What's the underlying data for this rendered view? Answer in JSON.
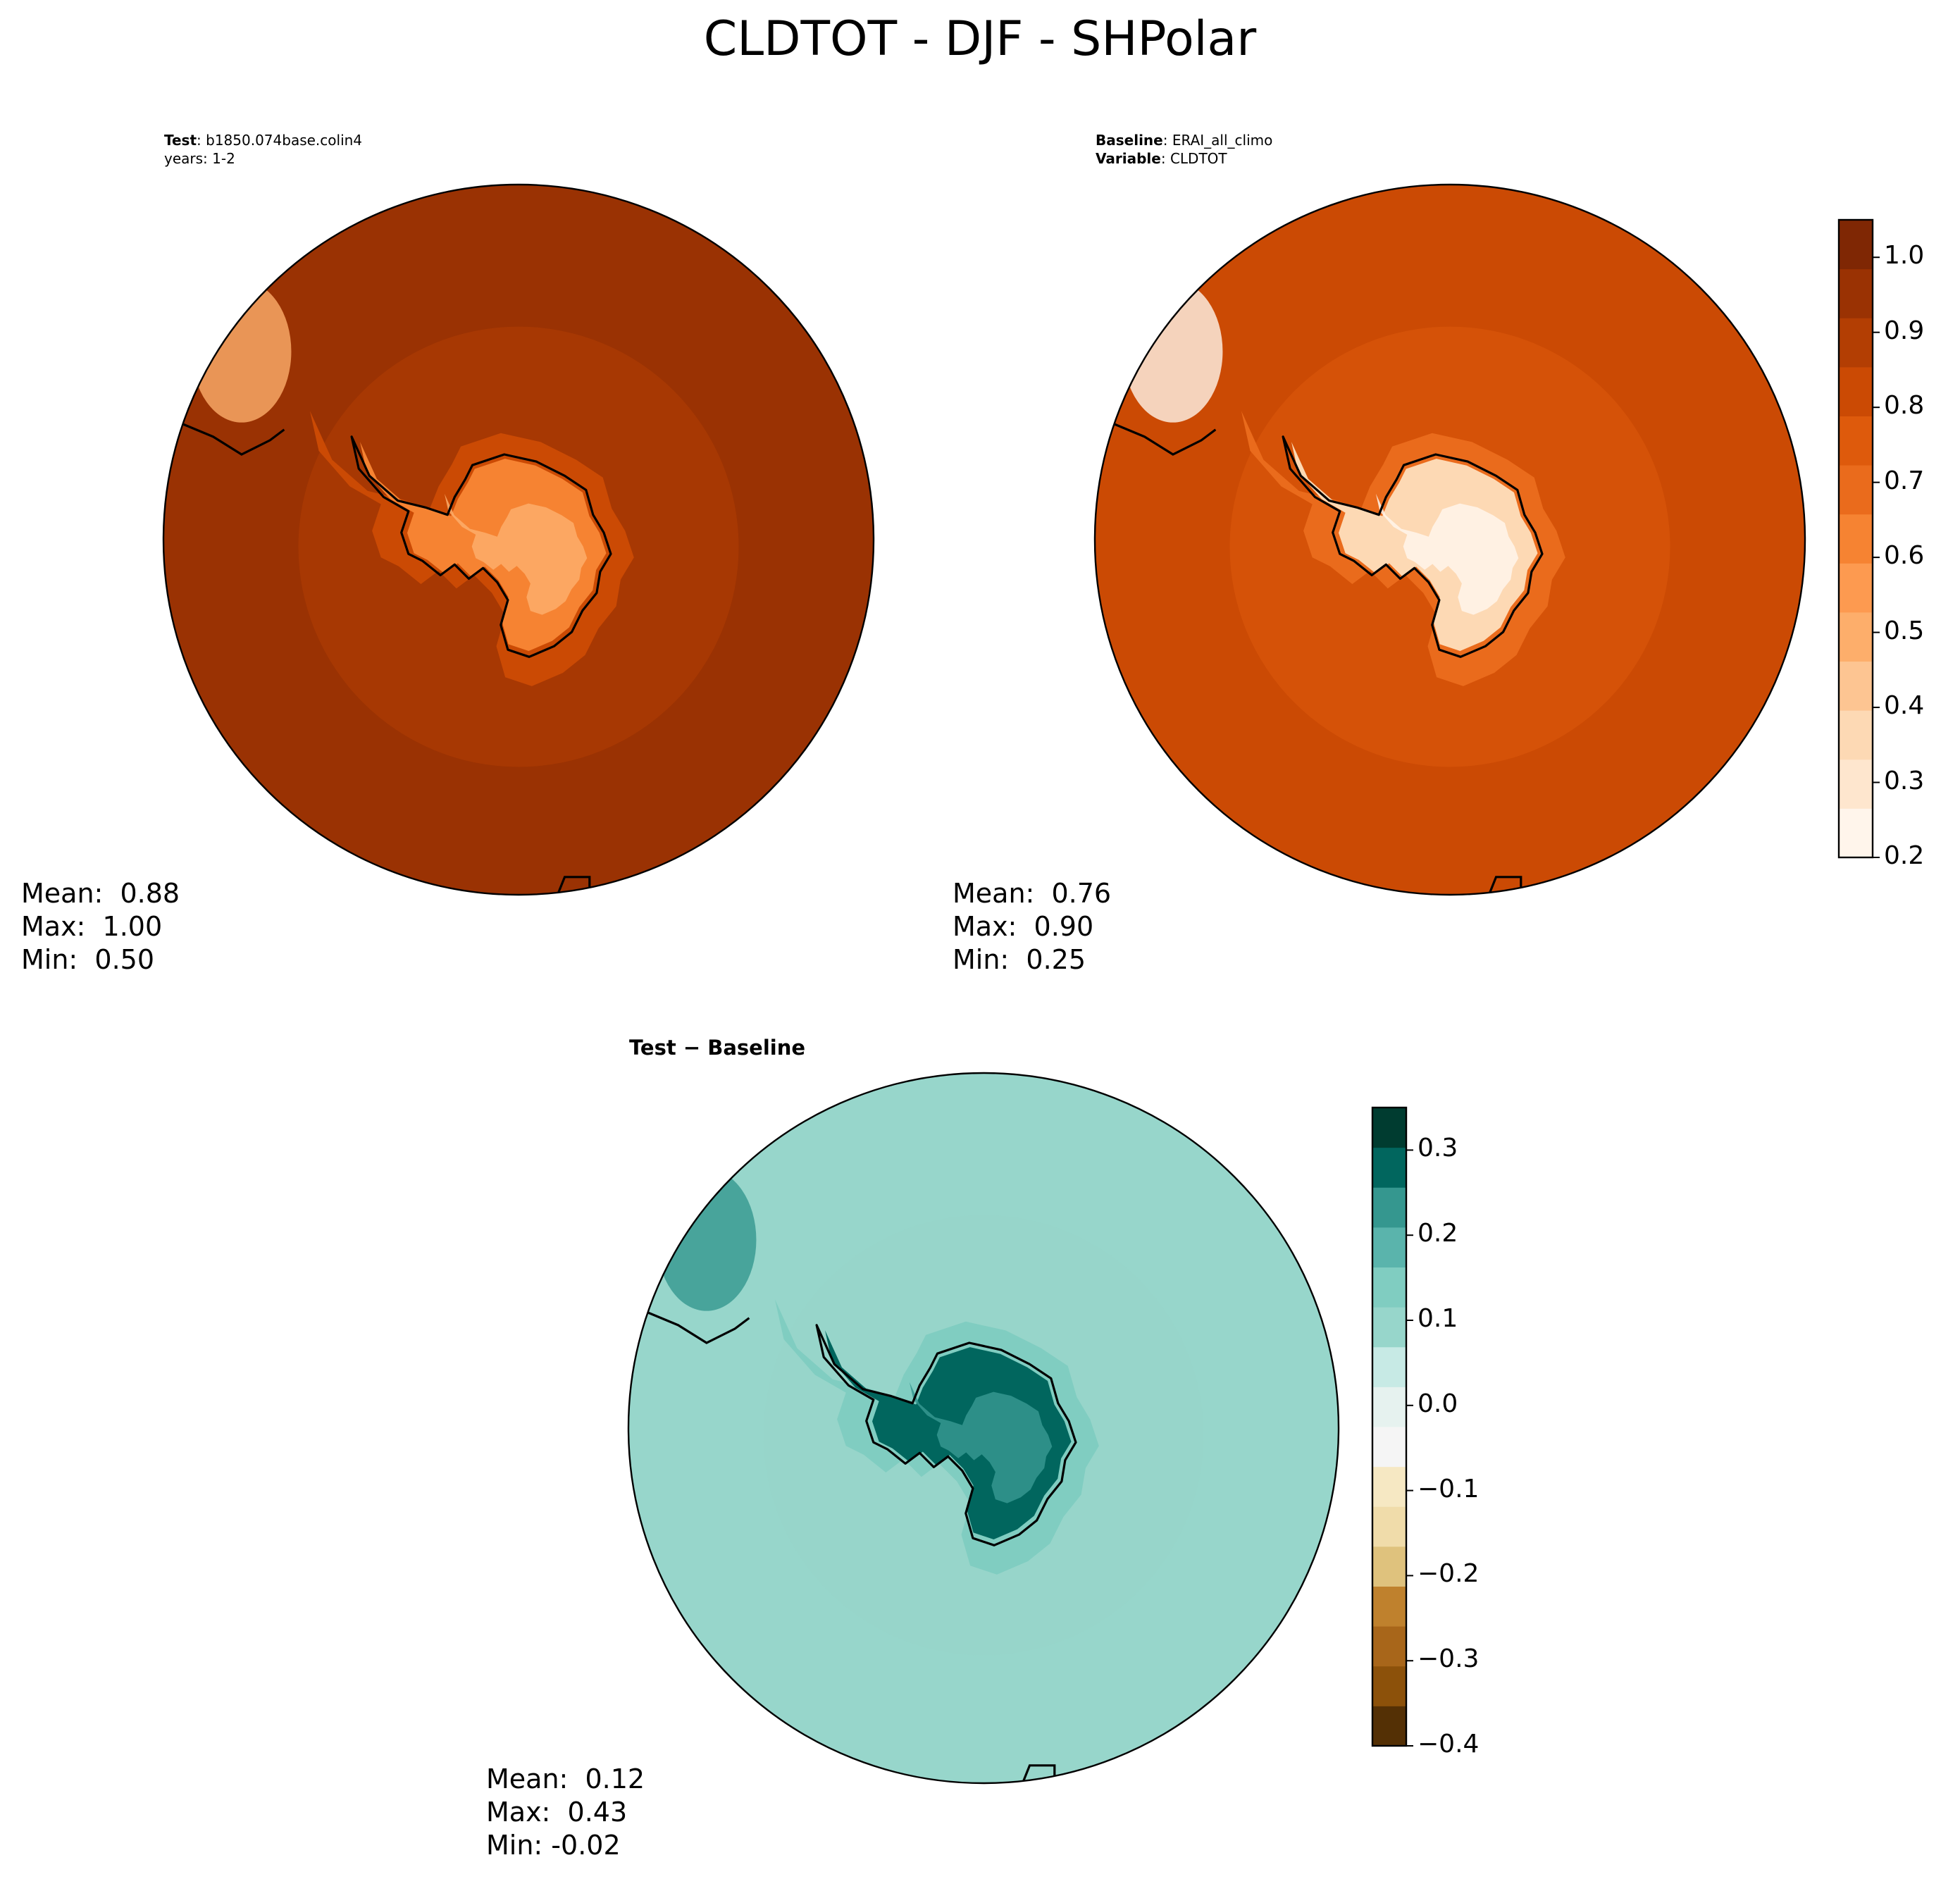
{
  "title": "CLDTOT - DJF - SHPolar",
  "panels": {
    "test": {
      "header_label": "Test",
      "header_value": "b1850.074base.colin4",
      "header_line2": "years: 1-2",
      "mean": "Mean:  0.88",
      "max": "Max:  1.00",
      "min": "Min:  0.50"
    },
    "baseline": {
      "header_label": "Baseline",
      "header_value": "ERAI_all_climo",
      "header_label2": "Variable",
      "header_value2": "CLDTOT",
      "mean": "Mean:  0.76",
      "max": "Max:  0.90",
      "min": "Min:  0.25"
    },
    "diff": {
      "header_label": "Test − Baseline",
      "mean": "Mean:  0.12",
      "max": "Max:  0.43",
      "min": "Min: -0.02"
    }
  },
  "colors": {
    "orange_ramp": [
      "#fff5eb",
      "#fee6ce",
      "#fdd9b4",
      "#fdc592",
      "#fdae6b",
      "#fd9a50",
      "#f68332",
      "#ea6b1c",
      "#de5a0c",
      "#cb4a04",
      "#b33e03",
      "#9a3203",
      "#7f2704"
    ],
    "diff_ramp": [
      "#543005",
      "#8c510a",
      "#a8661a",
      "#bf812d",
      "#dfc27d",
      "#f0dcaa",
      "#f6e8c3",
      "#f5f5f5",
      "#e6f2ef",
      "#c7eae5",
      "#97d6cb",
      "#80cdc1",
      "#5ab4ac",
      "#35978f",
      "#01665e",
      "#003c30"
    ],
    "coastline": "#000000"
  },
  "chart_data": [
    {
      "type": "heatmap",
      "projection": "south-polar-stereographic",
      "panel": "Test",
      "variable": "CLDTOT",
      "colorbar": {
        "range": [
          0.2,
          1.05
        ],
        "levels": [
          0.2,
          0.25,
          0.3,
          0.35,
          0.4,
          0.45,
          0.5,
          0.55,
          0.6,
          0.65,
          0.7,
          0.75,
          0.8,
          0.85,
          0.9,
          0.95,
          1.0,
          1.05
        ],
        "ticks": [
          "0.2",
          "0.3",
          "0.4",
          "0.5",
          "0.6",
          "0.7",
          "0.8",
          "0.9",
          "1.0"
        ]
      },
      "regions": [
        {
          "region": "open ocean",
          "value": 0.95
        },
        {
          "region": "ring near coast",
          "value": 0.85
        },
        {
          "region": "antarctic interior",
          "value": 0.65
        },
        {
          "region": "lowest over ice sheet",
          "value": 0.5
        }
      ],
      "stats": {
        "mean": 0.88,
        "max": 1.0,
        "min": 0.5
      }
    },
    {
      "type": "heatmap",
      "projection": "south-polar-stereographic",
      "panel": "Baseline",
      "variable": "CLDTOT",
      "colorbar": {
        "range": [
          0.2,
          1.05
        ],
        "ticks": [
          "0.2",
          "0.3",
          "0.4",
          "0.5",
          "0.6",
          "0.7",
          "0.8",
          "0.9",
          "1.0"
        ]
      },
      "regions": [
        {
          "region": "open ocean",
          "value": 0.82
        },
        {
          "region": "coastal ring",
          "value": 0.7
        },
        {
          "region": "antarctic interior",
          "value": 0.35
        },
        {
          "region": "south american tip",
          "value": 0.25
        }
      ],
      "stats": {
        "mean": 0.76,
        "max": 0.9,
        "min": 0.25
      }
    },
    {
      "type": "heatmap",
      "projection": "south-polar-stereographic",
      "panel": "Test − Baseline",
      "colorbar": {
        "range": [
          -0.4,
          0.35
        ],
        "ticks": [
          "−0.4",
          "−0.3",
          "−0.2",
          "−0.1",
          "0.0",
          "0.1",
          "0.2",
          "0.3"
        ]
      },
      "regions": [
        {
          "region": "open ocean",
          "value": 0.07
        },
        {
          "region": "coastal ring",
          "value": 0.12
        },
        {
          "region": "antarctic interior",
          "value": 0.27
        },
        {
          "region": "near south america",
          "value": 0.22
        }
      ],
      "stats": {
        "mean": 0.12,
        "max": 0.43,
        "min": -0.02
      }
    }
  ]
}
